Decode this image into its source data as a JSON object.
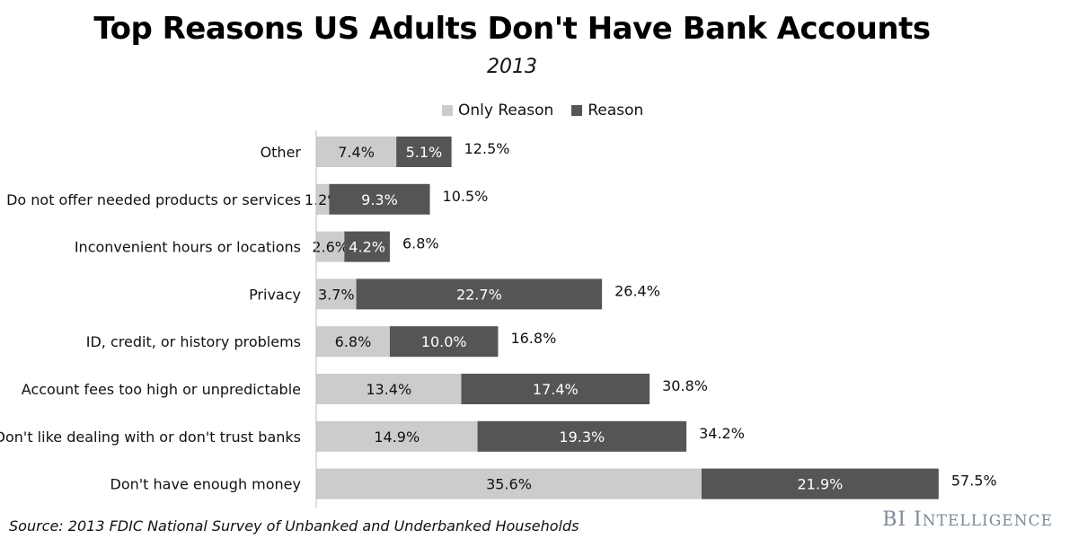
{
  "title": "Top Reasons US Adults Don't Have Bank Accounts",
  "subtitle": "2013",
  "source": "Source: 2013 FDIC National Survey of Unbanked and Underbanked Households",
  "brand": {
    "first": "BI",
    "second_initial": "I",
    "second_rest": "NTELLIGENCE"
  },
  "colors": {
    "only_reason": "#cccccc",
    "reason": "#555555"
  },
  "chart_data": {
    "type": "bar",
    "orientation": "horizontal",
    "stacked": true,
    "categories": [
      "Other",
      "Do not offer needed products or services",
      "Inconvenient hours or locations",
      "Privacy",
      "ID, credit, or history problems",
      "Account fees too high or unpredictable",
      "Don't like dealing with or don't trust banks",
      "Don't have enough money"
    ],
    "series": [
      {
        "name": "Only Reason",
        "values": [
          7.4,
          1.2,
          2.6,
          3.7,
          6.8,
          13.4,
          14.9,
          35.6
        ],
        "labels": [
          "7.4%",
          "1.2%",
          "2.6%",
          "3.7%",
          "6.8%",
          "13.4%",
          "14.9%",
          "35.6%"
        ]
      },
      {
        "name": "Reason",
        "values": [
          5.1,
          9.3,
          4.2,
          22.7,
          10.0,
          17.4,
          19.3,
          21.9
        ],
        "labels": [
          "5.1%",
          "9.3%",
          "4.2%",
          "22.7%",
          "10.0%",
          "17.4%",
          "19.3%",
          "21.9%"
        ]
      }
    ],
    "totals": [
      12.5,
      10.5,
      6.8,
      26.4,
      16.8,
      30.8,
      34.2,
      57.5
    ],
    "total_labels": [
      "12.5%",
      "10.5%",
      "6.8%",
      "26.4%",
      "16.8%",
      "30.8%",
      "34.2%",
      "57.5%"
    ],
    "legend": "top",
    "grid": false
  }
}
